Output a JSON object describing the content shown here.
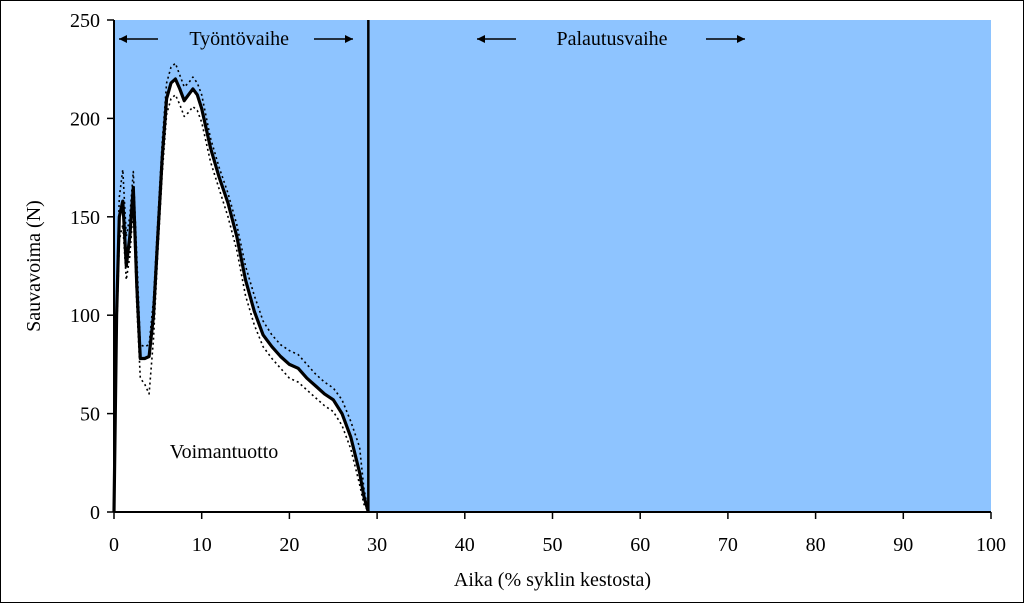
{
  "chart_data": {
    "type": "line",
    "xlabel": "Aika (% syklin kestosta)",
    "ylabel": "Sauvavoima (N)",
    "xlim": [
      0,
      100
    ],
    "ylim": [
      0,
      250
    ],
    "x_ticks": [
      0,
      10,
      20,
      30,
      40,
      50,
      60,
      70,
      80,
      90,
      100
    ],
    "y_ticks": [
      0,
      50,
      100,
      150,
      200,
      250
    ],
    "phase_boundary_x": 29,
    "phases": [
      {
        "label": "Työntövaihe",
        "range": [
          0,
          29
        ]
      },
      {
        "label": "Palautusvaihe",
        "range": [
          29,
          100
        ]
      }
    ],
    "area_label": "Voimantuotto",
    "background_color": "#8ec4ff",
    "fill_color": "#ffffff",
    "series": [
      {
        "style": "solid",
        "x": [
          0,
          0.3,
          0.6,
          1,
          1.4,
          1.8,
          2.2,
          2.6,
          3,
          3.5,
          4,
          4.5,
          5,
          5.5,
          6,
          6.5,
          7,
          7.5,
          8,
          8.5,
          9,
          9.5,
          10,
          11,
          12,
          13,
          14,
          15,
          16,
          17,
          18,
          19,
          20,
          21,
          22,
          23,
          24,
          25,
          26,
          27,
          28,
          28.5,
          29
        ],
        "y": [
          0,
          100,
          150,
          158,
          125,
          140,
          165,
          115,
          78,
          78,
          79,
          100,
          140,
          180,
          210,
          218,
          220,
          215,
          209,
          212,
          215,
          212,
          205,
          185,
          170,
          157,
          140,
          118,
          102,
          90,
          84,
          79,
          75,
          73,
          68,
          64,
          60,
          57,
          50,
          38,
          20,
          8,
          0
        ]
      },
      {
        "style": "dotted",
        "x": [
          0,
          0.3,
          0.6,
          1,
          1.4,
          1.8,
          2.2,
          2.6,
          3,
          3.5,
          4,
          4.5,
          5,
          5.5,
          6,
          6.5,
          7,
          7.5,
          8,
          8.5,
          9,
          9.5,
          10,
          11,
          12,
          13,
          14,
          15,
          16,
          17,
          18,
          19,
          20,
          21,
          22,
          23,
          24,
          25,
          26,
          27,
          28,
          28.5,
          29
        ],
        "y": [
          0,
          110,
          160,
          174,
          140,
          150,
          173,
          130,
          85,
          84,
          85,
          108,
          148,
          188,
          218,
          226,
          228,
          222,
          216,
          218,
          221,
          218,
          212,
          190,
          175,
          162,
          146,
          125,
          110,
          97,
          90,
          85,
          82,
          80,
          75,
          70,
          66,
          63,
          57,
          46,
          33,
          12,
          0
        ]
      },
      {
        "style": "dotted",
        "x": [
          0,
          0.3,
          0.6,
          1,
          1.4,
          1.8,
          2.2,
          2.6,
          3,
          3.5,
          4,
          4.5,
          5,
          5.5,
          6,
          6.5,
          7,
          7.5,
          8,
          8.5,
          9,
          9.5,
          10,
          11,
          12,
          13,
          14,
          15,
          16,
          17,
          18,
          19,
          20,
          21,
          22,
          23,
          24,
          25,
          26,
          27,
          28,
          28.5,
          29
        ],
        "y": [
          0,
          90,
          138,
          146,
          118,
          130,
          155,
          105,
          68,
          65,
          60,
          88,
          132,
          172,
          202,
          210,
          212,
          207,
          201,
          203,
          206,
          204,
          198,
          178,
          164,
          150,
          133,
          110,
          95,
          84,
          78,
          73,
          68,
          66,
          62,
          58,
          54,
          51,
          44,
          32,
          14,
          4,
          0
        ]
      }
    ]
  }
}
